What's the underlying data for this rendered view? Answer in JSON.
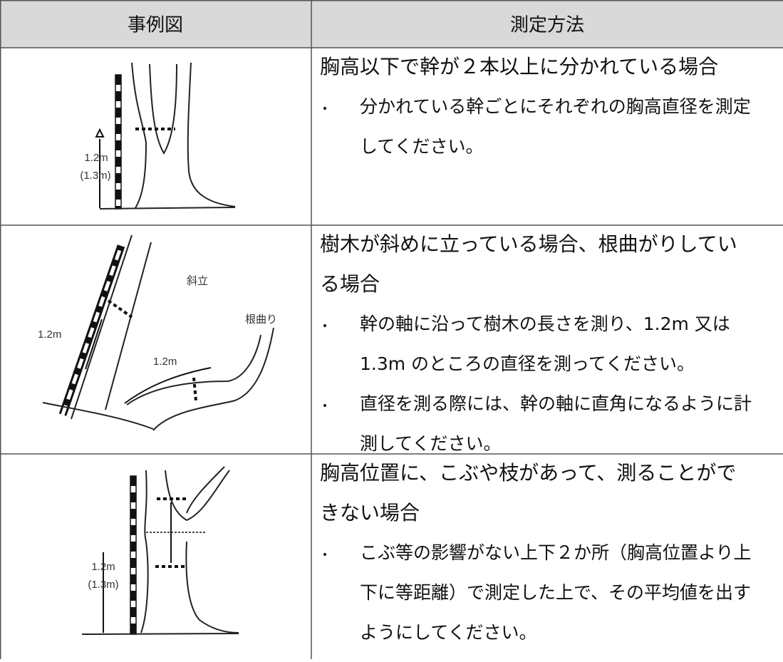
{
  "header": {
    "col1": "事例図",
    "col2": "測定方法"
  },
  "rows": [
    {
      "figure_labels": [
        "1.2m",
        "(1.3m)"
      ],
      "title_lines": [
        "胸高以下で幹が２本以上に分かれている場合"
      ],
      "bullets": [
        [
          "分かれている幹ごとにそれぞれの胸高直径を測定",
          "してください。"
        ]
      ]
    },
    {
      "figure_labels": [
        "斜立",
        "根曲り",
        "1.2m",
        "1.2m"
      ],
      "title_lines": [
        "樹木が斜めに立っている場合、根曲がりしてい",
        "る場合"
      ],
      "bullets": [
        [
          "幹の軸に沿って樹木の長さを測り、1.2m 又は",
          "1.3m のところの直径を測ってください。"
        ],
        [
          "直径を測る際には、幹の軸に直角になるように計",
          "測してください。"
        ]
      ]
    },
    {
      "figure_labels": [
        "1.2m",
        "(1.3m)"
      ],
      "title_lines": [
        "胸高位置に、こぶや枝があって、測ることがで",
        "きない場合"
      ],
      "bullets": [
        [
          "こぶ等の影響がない上下２か所（胸高位置より上",
          "下に等距離）で測定した上で、その平均値を出す",
          "ようにしてください。"
        ]
      ]
    }
  ]
}
